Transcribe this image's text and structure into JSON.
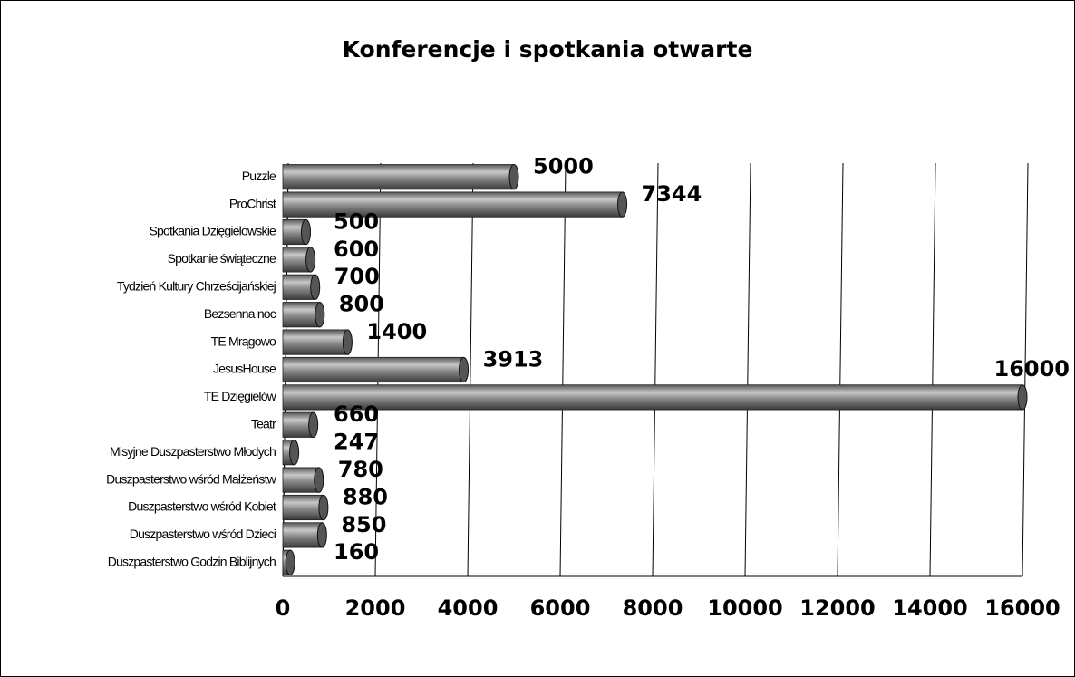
{
  "chart_data": {
    "type": "bar",
    "orientation": "horizontal",
    "title": "Konferencje i spotkania otwarte",
    "categories": [
      "Puzzle",
      "ProChrist",
      "Spotkania Dzięgielowskie",
      "Spotkanie świąteczne",
      "Tydzień Kultury Chrześcijańskiej",
      "Bezsenna noc",
      "TE Mrągowo",
      "JesusHouse",
      "TE Dzięgielów",
      "Teatr",
      "Misyjne Duszpasterstwo Młodych",
      "Duszpasterstwo wśród Małżeństw",
      "Duszpasterstwo wśród Kobiet",
      "Duszpasterstwo wśród Dzieci",
      "Duszpasterstwo Godzin Biblijnych"
    ],
    "values": [
      5000,
      7344,
      500,
      600,
      700,
      800,
      1400,
      3913,
      16000,
      660,
      247,
      780,
      880,
      850,
      160
    ],
    "color": "#808080",
    "xlim": [
      0,
      16000
    ],
    "xticks": [
      0,
      2000,
      4000,
      6000,
      8000,
      10000,
      12000,
      14000,
      16000
    ],
    "grid": true
  }
}
